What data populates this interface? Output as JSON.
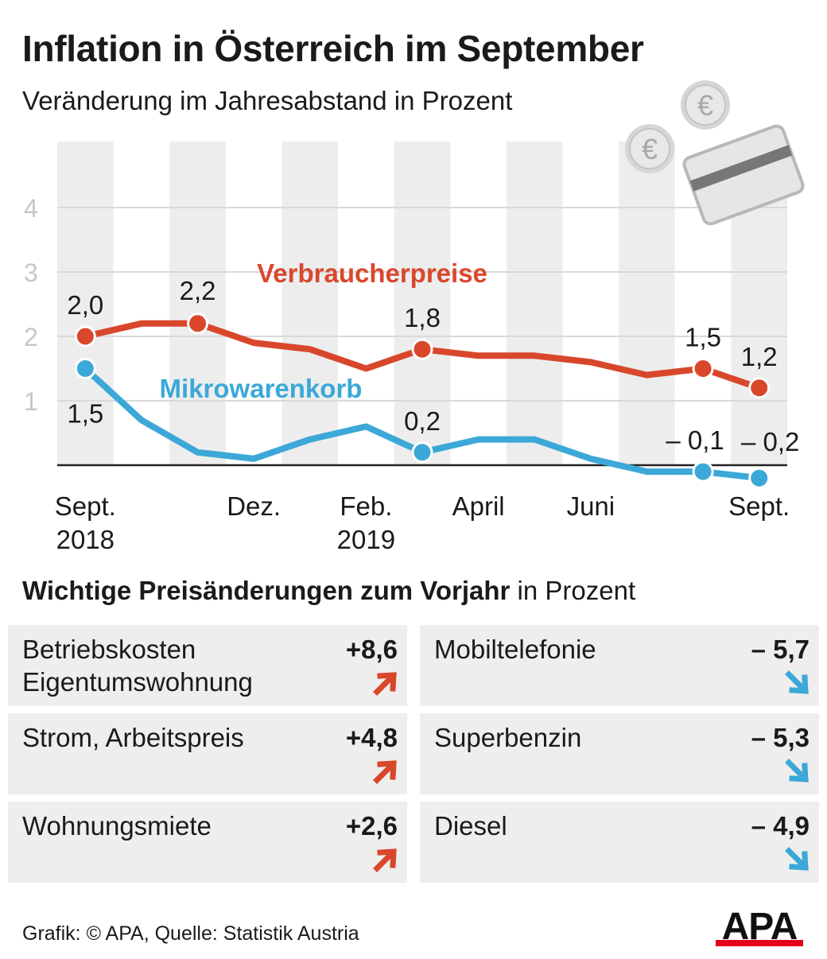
{
  "header": {
    "title": "Inflation in Österreich im September",
    "subtitle": "Veränderung im Jahresabstand in Prozent"
  },
  "chart_data": {
    "type": "line",
    "x": [
      "2018-09",
      "2018-10",
      "2018-11",
      "2018-12",
      "2019-01",
      "2019-02",
      "2019-03",
      "2019-04",
      "2019-05",
      "2019-06",
      "2019-07",
      "2019-08",
      "2019-09"
    ],
    "x_tick_labels": [
      {
        "month": "2018-09",
        "line1": "Sept.",
        "line2": "2018"
      },
      {
        "month": "2018-12",
        "line1": "Dez.",
        "line2": ""
      },
      {
        "month": "2019-02",
        "line1": "Feb.",
        "line2": "2019"
      },
      {
        "month": "2019-04",
        "line1": "April",
        "line2": ""
      },
      {
        "month": "2019-06",
        "line1": "Juni",
        "line2": ""
      },
      {
        "month": "2019-09",
        "line1": "Sept.",
        "line2": ""
      }
    ],
    "y_ticks": [
      "1",
      "2",
      "3",
      "4"
    ],
    "ylim": [
      -0.2,
      5
    ],
    "grid": true,
    "series": [
      {
        "name": "Verbraucherpreise",
        "color": "#d9472b",
        "values": [
          2.0,
          2.2,
          2.2,
          1.9,
          1.8,
          1.5,
          1.8,
          1.7,
          1.7,
          1.6,
          1.4,
          1.5,
          1.2
        ],
        "labeled_points": [
          {
            "index": 0,
            "label": "2,0"
          },
          {
            "index": 2,
            "label": "2,2"
          },
          {
            "index": 6,
            "label": "1,8"
          },
          {
            "index": 11,
            "label": "1,5"
          },
          {
            "index": 12,
            "label": "1,2"
          }
        ]
      },
      {
        "name": "Mikrowarenkorb",
        "color": "#3ba8d8",
        "values": [
          1.5,
          0.7,
          0.2,
          0.1,
          0.4,
          0.6,
          0.2,
          0.4,
          0.4,
          0.1,
          -0.1,
          -0.1,
          -0.2
        ],
        "labeled_points": [
          {
            "index": 0,
            "label": "1,5"
          },
          {
            "index": 6,
            "label": "0,2"
          },
          {
            "index": 11,
            "label": "– 0,1"
          },
          {
            "index": 12,
            "label": "– 0,2"
          }
        ]
      }
    ]
  },
  "price_changes": {
    "title_bold": "Wichtige Preisänderungen zum Vorjahr",
    "title_rest": " in Prozent",
    "up_color": "#d9472b",
    "down_color": "#3ba8d8",
    "items": [
      {
        "label": "Betriebskosten Eigentumswohnung",
        "value": "+8,6",
        "direction": "up"
      },
      {
        "label": "Mobiltelefonie",
        "value": "– 5,7",
        "direction": "down"
      },
      {
        "label": "Strom, Arbeitspreis",
        "value": "+4,8",
        "direction": "up"
      },
      {
        "label": "Superbenzin",
        "value": "– 5,3",
        "direction": "down"
      },
      {
        "label": "Wohnungsmiete",
        "value": "+2,6",
        "direction": "up"
      },
      {
        "label": "Diesel",
        "value": "– 4,9",
        "direction": "down"
      }
    ]
  },
  "decor": {
    "coin_symbol": "€"
  },
  "footer": {
    "source": "Grafik: © APA, Quelle: Statistik Austria",
    "logo_text": "APA",
    "logo_accent": "#e2001a"
  }
}
